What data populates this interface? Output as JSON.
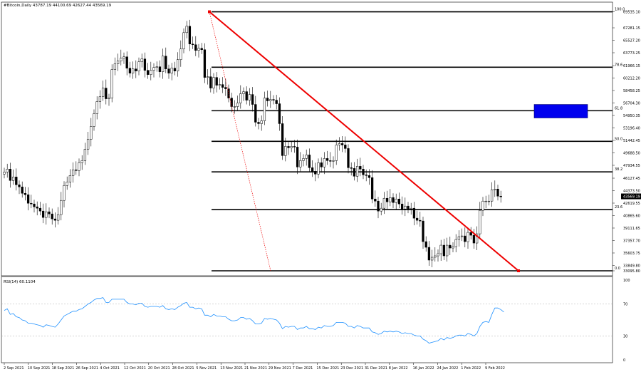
{
  "chart_data": [
    {
      "type": "candlestick",
      "title": "#Bitcoin,Daily  43787.19 44100.69 42627.44 43569.19",
      "symbol": "#Bitcoin",
      "timeframe": "Daily",
      "last_price": "43569.19",
      "ylim": [
        33095.8,
        69535.1
      ],
      "price_labels": [
        "69535.10",
        "67281.15",
        "65527.20",
        "63773.25",
        "61966.15",
        "60212.20",
        "58458.25",
        "56704.30",
        "54950.35",
        "53196.40",
        "51442.45",
        "49688.50",
        "47934.55",
        "46127.45",
        "44373.50",
        "42619.55",
        "40865.60",
        "39111.65",
        "37357.70",
        "35603.75",
        "33849.80",
        "33095.80"
      ],
      "x_labels": [
        "2 Sep 2021",
        "10 Sep 2021",
        "18 Sep 2021",
        "26 Sep 2021",
        "4 Oct 2021",
        "12 Oct 2021",
        "20 Oct 2021",
        "28 Oct 2021",
        "5 Nov 2021",
        "13 Nov 2021",
        "21 Nov 2021",
        "29 Nov 2021",
        "7 Dec 2021",
        "15 Dec 2021",
        "23 Dec 2021",
        "31 Dec 2021",
        "8 Jan 2022",
        "16 Jan 2022",
        "24 Jan 2022",
        "1 Feb 2022",
        "9 Feb 2022"
      ],
      "approx_close": [
        47000,
        47400,
        45800,
        46300,
        45200,
        44900,
        44000,
        43800,
        42600,
        42500,
        42100,
        41900,
        41500,
        40600,
        41400,
        41100,
        40400,
        40200,
        41000,
        43000,
        45100,
        45600,
        46500,
        47300,
        47200,
        48300,
        48600,
        50200,
        51600,
        53400,
        55200,
        56900,
        57600,
        58800,
        57300,
        57400,
        61400,
        62200,
        62600,
        63000,
        63200,
        61600,
        60900,
        61500,
        61200,
        62500,
        62900,
        61300,
        60700,
        61300,
        61700,
        61800,
        61100,
        63300,
        61500,
        60900,
        61600,
        61200,
        62800,
        64300,
        66600,
        67500,
        65000,
        64900,
        64100,
        64400,
        64200,
        60300,
        60400,
        58800,
        60300,
        59200,
        59300,
        58900,
        58700,
        57400,
        56200,
        56200,
        56700,
        58000,
        58300,
        57100,
        57900,
        56500,
        54000,
        53800,
        54200,
        57400,
        57000,
        57200,
        57100,
        56600,
        53800,
        49300,
        50600,
        50400,
        50600,
        50500,
        47700,
        48600,
        48900,
        49400,
        47600,
        47100,
        46700,
        48300,
        47700,
        48900,
        48600,
        48500,
        48600,
        50800,
        51000,
        50800,
        50300,
        47600,
        47500,
        46400,
        47800,
        47400,
        46600,
        46500,
        46200,
        43200,
        42900,
        41500,
        41900,
        43300,
        42800,
        43400,
        42700,
        43200,
        42500,
        41800,
        42200,
        41800,
        41900,
        40500,
        40200,
        40100,
        37200,
        36400,
        34600,
        35000,
        35200,
        35500,
        36700,
        35200,
        36700,
        36300,
        36500,
        37500,
        37900,
        38000,
        37200,
        38500,
        38100,
        37000,
        38300,
        41600,
        42900,
        42900,
        42900,
        44500,
        44600,
        43600,
        43500
      ]
    },
    {
      "type": "fibonacci_levels",
      "levels": [
        {
          "label": "100.0",
          "price": 69535.1
        },
        {
          "label": "78.6",
          "price": 61737
        },
        {
          "label": "61.8",
          "price": 55615
        },
        {
          "label": "50.0",
          "price": 51315
        },
        {
          "label": "38.2",
          "price": 47015
        },
        {
          "label": "23.6",
          "price": 41695
        },
        {
          "label": "0.0",
          "price": 33095.8
        }
      ]
    },
    {
      "type": "line",
      "title": "RSI(14) 60.1104",
      "ylim": [
        0,
        100
      ],
      "y_ticks": [
        "100",
        "70",
        "30",
        "0"
      ],
      "values": [
        62,
        64,
        57,
        58,
        54,
        53,
        50,
        49,
        46,
        46,
        45,
        44,
        43,
        41,
        44,
        43,
        42,
        41,
        45,
        50,
        55,
        57,
        59,
        61,
        61,
        63,
        64,
        67,
        70,
        72,
        75,
        77,
        77,
        78,
        72,
        72,
        76,
        76,
        76,
        76,
        76,
        72,
        70,
        70,
        69,
        71,
        71,
        67,
        66,
        67,
        67,
        67,
        66,
        68,
        64,
        63,
        64,
        63,
        66,
        68,
        71,
        72,
        66,
        66,
        64,
        65,
        64,
        56,
        56,
        54,
        57,
        55,
        55,
        54,
        54,
        51,
        49,
        49,
        50,
        53,
        53,
        51,
        52,
        49,
        45,
        45,
        46,
        52,
        51,
        52,
        51,
        50,
        46,
        39,
        42,
        41,
        42,
        42,
        38,
        40,
        40,
        42,
        39,
        39,
        38,
        41,
        40,
        43,
        42,
        42,
        43,
        47,
        47,
        47,
        46,
        42,
        42,
        40,
        43,
        42,
        40,
        40,
        40,
        35,
        34,
        32,
        33,
        36,
        35,
        36,
        35,
        36,
        35,
        33,
        34,
        33,
        33,
        31,
        30,
        30,
        26,
        24,
        21,
        22,
        23,
        24,
        27,
        25,
        28,
        27,
        28,
        30,
        31,
        31,
        30,
        33,
        32,
        30,
        33,
        42,
        47,
        48,
        47,
        57,
        65,
        65,
        63,
        60
      ]
    }
  ]
}
